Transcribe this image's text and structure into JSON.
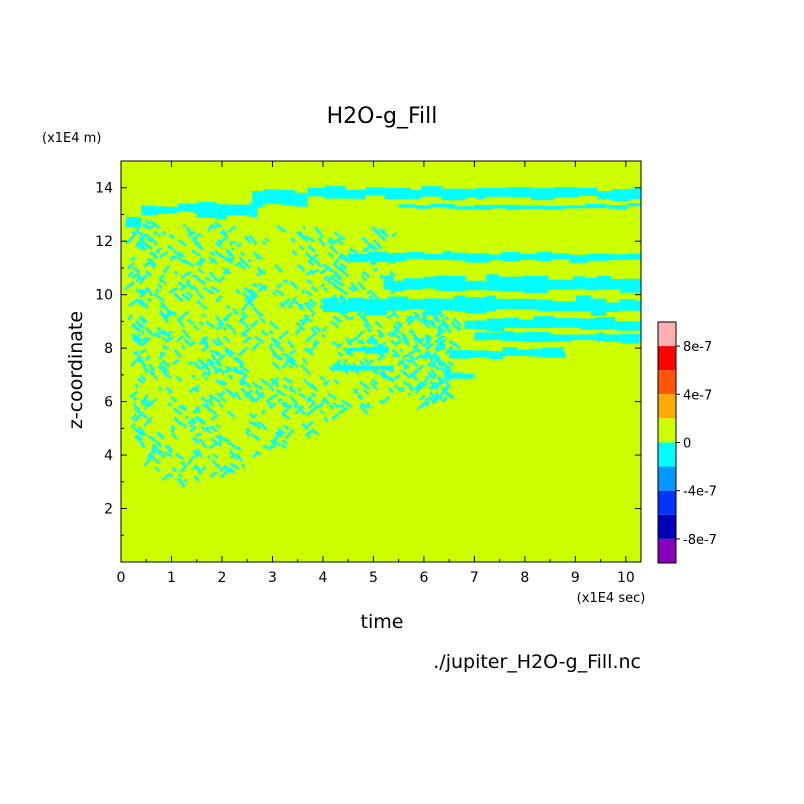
{
  "chart_data": {
    "type": "heatmap",
    "title": "H2O-g_Fill",
    "xlabel": "time",
    "ylabel": "z-coordinate",
    "x_unit": "(x1E4 sec)",
    "y_unit": "(x1E4 m)",
    "xlim": [
      0,
      10.3
    ],
    "ylim": [
      0,
      15
    ],
    "x_ticks": [
      "0",
      "1",
      "2",
      "3",
      "4",
      "5",
      "6",
      "7",
      "8",
      "9",
      "10"
    ],
    "y_ticks": [
      "2",
      "4",
      "6",
      "8",
      "10",
      "12",
      "14"
    ],
    "source_file": "./jupiter_H2O-g_Fill.nc",
    "background_level_color": "#ccff00",
    "band_color": "#00ffff",
    "colorbar": {
      "labels": [
        "8e-7",
        "4e-7",
        "0",
        "-4e-7",
        "-8e-7"
      ],
      "colors": [
        "#ffb0b0",
        "#ff0000",
        "#ff5500",
        "#ffaa00",
        "#ccff00",
        "#00ffff",
        "#0099ff",
        "#0033ff",
        "#0000bb",
        "#8800bb"
      ]
    },
    "bands": [
      {
        "t0": 0.1,
        "t1": 0.4,
        "z": 12.7,
        "dz": 0.4
      },
      {
        "t0": 0.4,
        "t1": 1.5,
        "z": 13.2,
        "dz": 0.3
      },
      {
        "t0": 1.5,
        "t1": 2.7,
        "z": 13.1,
        "dz": 0.5
      },
      {
        "t0": 2.6,
        "t1": 3.7,
        "z": 13.6,
        "dz": 0.5
      },
      {
        "t0": 3.7,
        "t1": 10.3,
        "z": 13.8,
        "dz": 0.4
      },
      {
        "t0": 5.5,
        "t1": 10.3,
        "z": 13.3,
        "dz": 0.15
      },
      {
        "t0": 4.5,
        "t1": 10.3,
        "z": 11.4,
        "dz": 0.3
      },
      {
        "t0": 5.2,
        "t1": 10.3,
        "z": 10.4,
        "dz": 0.5
      },
      {
        "t0": 4.0,
        "t1": 10.3,
        "z": 9.6,
        "dz": 0.5
      },
      {
        "t0": 6.8,
        "t1": 10.3,
        "z": 8.9,
        "dz": 0.4
      },
      {
        "t0": 7.0,
        "t1": 10.3,
        "z": 8.4,
        "dz": 0.3
      },
      {
        "t0": 6.5,
        "t1": 8.8,
        "z": 7.8,
        "dz": 0.3
      },
      {
        "t0": 4.5,
        "t1": 5.3,
        "z": 8.0,
        "dz": 0.2
      },
      {
        "t0": 4.2,
        "t1": 5.4,
        "z": 7.3,
        "dz": 0.2
      },
      {
        "t0": 6.4,
        "t1": 7.0,
        "z": 7.0,
        "dz": 0.2
      }
    ]
  }
}
